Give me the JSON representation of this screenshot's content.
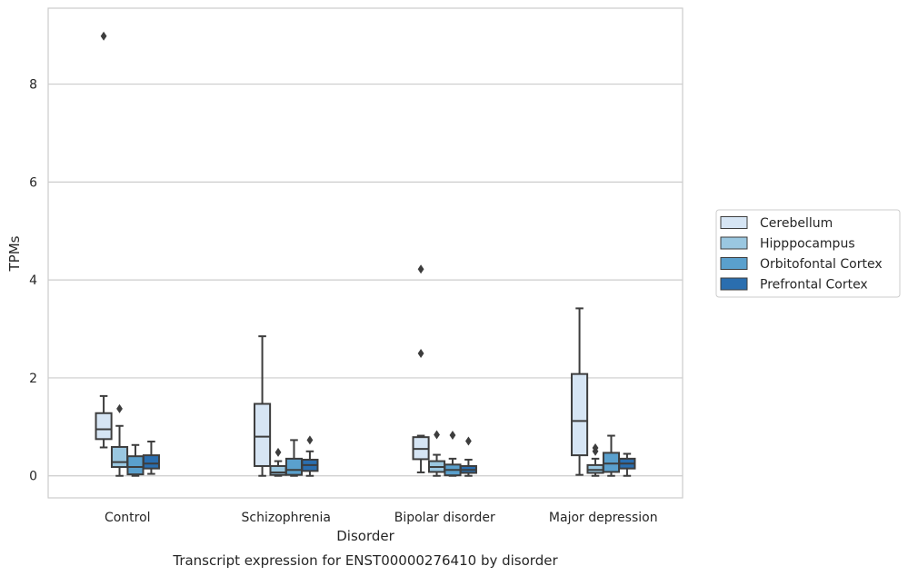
{
  "chart_data": {
    "type": "box",
    "caption": "Transcript expression for ENST00000276410 by disorder",
    "xlabel": "Disorder",
    "ylabel": "TPMs",
    "ylim": [
      -0.45,
      9.55
    ],
    "yticks": [
      0,
      2,
      4,
      6,
      8
    ],
    "grid": true,
    "legend_position": "right",
    "categories": [
      "Control",
      "Schizophrenia",
      "Bipolar disorder",
      "Major depression"
    ],
    "series": [
      {
        "name": "Cerebellum",
        "color": "#d6e5f4",
        "boxes": [
          {
            "q1": 0.75,
            "median": 0.95,
            "q3": 1.28,
            "whisker_low": 0.58,
            "whisker_high": 1.63,
            "outliers": [
              8.98
            ]
          },
          {
            "q1": 0.2,
            "median": 0.8,
            "q3": 1.47,
            "whisker_low": 0.0,
            "whisker_high": 2.85,
            "outliers": []
          },
          {
            "q1": 0.34,
            "median": 0.55,
            "q3": 0.79,
            "whisker_low": 0.07,
            "whisker_high": 0.82,
            "outliers": [
              2.5,
              4.22
            ]
          },
          {
            "q1": 0.42,
            "median": 1.12,
            "q3": 2.08,
            "whisker_low": 0.02,
            "whisker_high": 3.42,
            "outliers": []
          }
        ]
      },
      {
        "name": "Hipppocampus",
        "color": "#9ac7e0",
        "boxes": [
          {
            "q1": 0.18,
            "median": 0.28,
            "q3": 0.59,
            "whisker_low": 0.0,
            "whisker_high": 1.02,
            "outliers": [
              1.37
            ]
          },
          {
            "q1": 0.02,
            "median": 0.07,
            "q3": 0.2,
            "whisker_low": 0.0,
            "whisker_high": 0.3,
            "outliers": [
              0.48
            ]
          },
          {
            "q1": 0.08,
            "median": 0.18,
            "q3": 0.3,
            "whisker_low": 0.0,
            "whisker_high": 0.43,
            "outliers": [
              0.84
            ]
          },
          {
            "q1": 0.06,
            "median": 0.12,
            "q3": 0.22,
            "whisker_low": 0.0,
            "whisker_high": 0.35,
            "outliers": [
              0.5,
              0.57
            ]
          }
        ]
      },
      {
        "name": "Orbitofontal Cortex",
        "color": "#5aa0cd",
        "boxes": [
          {
            "q1": 0.03,
            "median": 0.18,
            "q3": 0.4,
            "whisker_low": 0.0,
            "whisker_high": 0.63,
            "outliers": []
          },
          {
            "q1": 0.02,
            "median": 0.12,
            "q3": 0.35,
            "whisker_low": 0.0,
            "whisker_high": 0.73,
            "outliers": []
          },
          {
            "q1": 0.01,
            "median": 0.12,
            "q3": 0.23,
            "whisker_low": 0.0,
            "whisker_high": 0.35,
            "outliers": [
              0.83
            ]
          },
          {
            "q1": 0.08,
            "median": 0.25,
            "q3": 0.47,
            "whisker_low": 0.0,
            "whisker_high": 0.82,
            "outliers": []
          }
        ]
      },
      {
        "name": "Prefrontal Cortex",
        "color": "#2a6eaf",
        "boxes": [
          {
            "q1": 0.15,
            "median": 0.25,
            "q3": 0.42,
            "whisker_low": 0.04,
            "whisker_high": 0.7,
            "outliers": []
          },
          {
            "q1": 0.1,
            "median": 0.22,
            "q3": 0.33,
            "whisker_low": 0.0,
            "whisker_high": 0.5,
            "outliers": [
              0.73
            ]
          },
          {
            "q1": 0.06,
            "median": 0.12,
            "q3": 0.2,
            "whisker_low": 0.0,
            "whisker_high": 0.33,
            "outliers": [
              0.71
            ]
          },
          {
            "q1": 0.15,
            "median": 0.25,
            "q3": 0.35,
            "whisker_low": 0.0,
            "whisker_high": 0.45,
            "outliers": []
          }
        ]
      }
    ]
  }
}
